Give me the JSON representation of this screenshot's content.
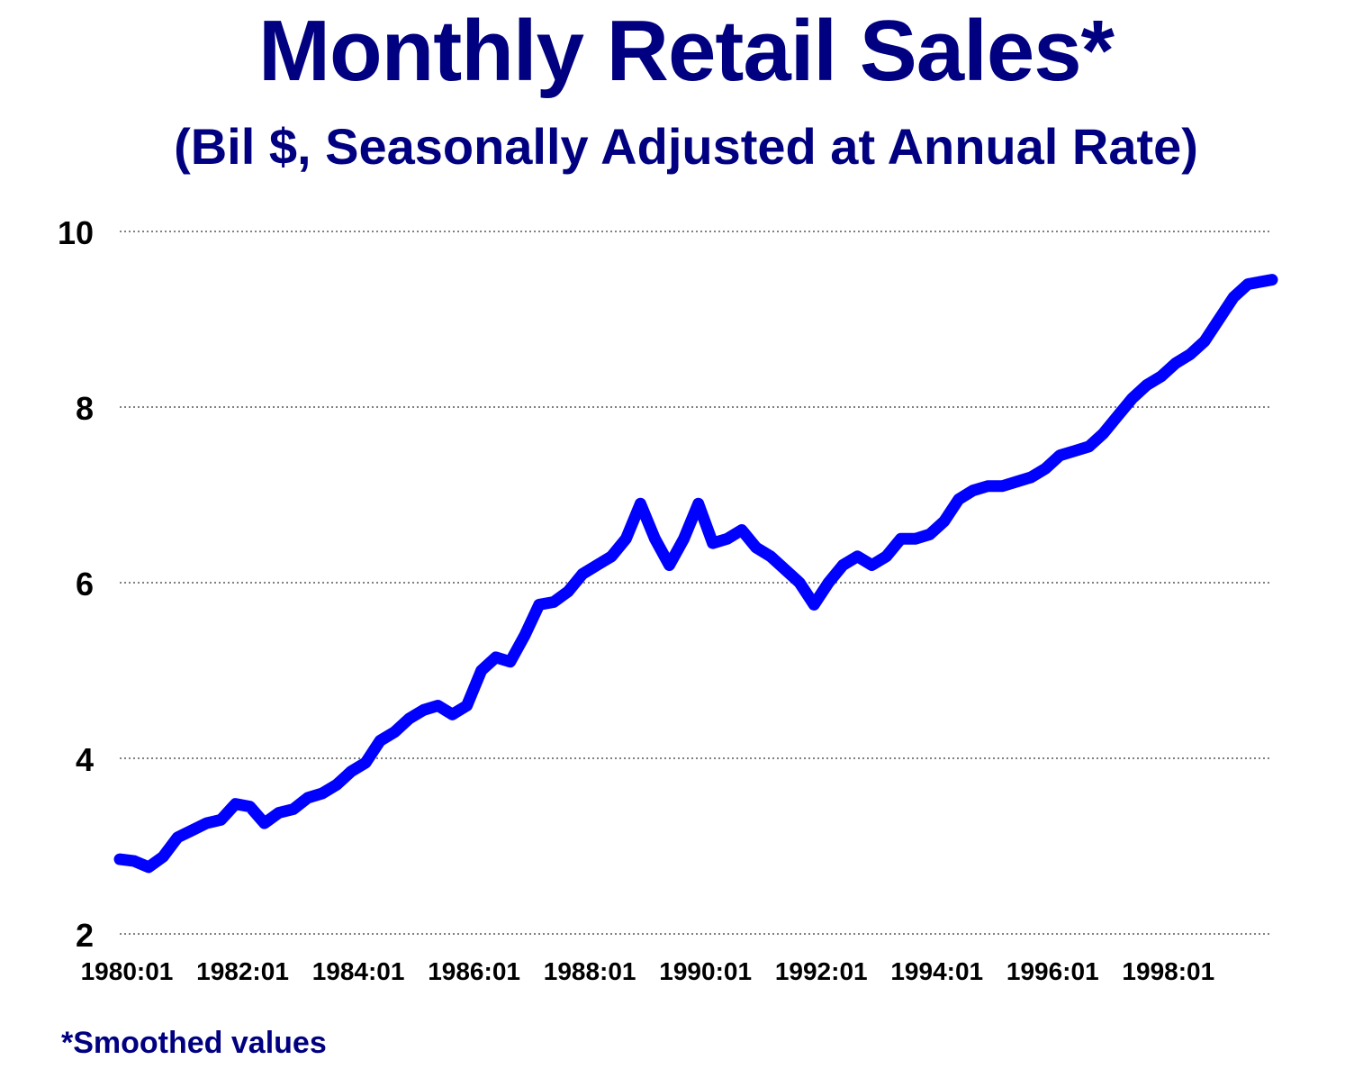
{
  "header": {
    "title": "Monthly Retail Sales*",
    "subtitle": "(Bil $, Seasonally Adjusted at Annual Rate)"
  },
  "footnote": "*Smoothed values",
  "colors": {
    "text": "#000080",
    "line": "#0000ff",
    "grid": "#000000"
  },
  "chart_data": {
    "type": "line",
    "title": "Monthly Retail Sales*",
    "subtitle": "(Bil $, Seasonally Adjusted at Annual Rate)",
    "xlabel": "",
    "ylabel": "",
    "ylim": [
      2,
      10
    ],
    "yticks": [
      2,
      4,
      6,
      8,
      10
    ],
    "xlim": [
      "1980:01",
      "1999:12"
    ],
    "xticks": [
      "1980:01",
      "1982:01",
      "1984:01",
      "1986:01",
      "1988:01",
      "1990:01",
      "1992:01",
      "1994:01",
      "1996:01",
      "1998:01"
    ],
    "grid": "horizontal dotted",
    "legend": "none",
    "series": [
      {
        "x": [
          "1980:01",
          "1980:04",
          "1980:07",
          "1980:10",
          "1981:01",
          "1981:04",
          "1981:07",
          "1981:10",
          "1982:01",
          "1982:04",
          "1982:07",
          "1982:10",
          "1983:01",
          "1983:04",
          "1983:07",
          "1983:10",
          "1984:01",
          "1984:04",
          "1984:07",
          "1984:10",
          "1985:01",
          "1985:04",
          "1985:07",
          "1985:10",
          "1986:01",
          "1986:04",
          "1986:07",
          "1986:10",
          "1987:01",
          "1987:04",
          "1987:07",
          "1987:10",
          "1988:01",
          "1988:04",
          "1988:07",
          "1988:10",
          "1989:01",
          "1989:04",
          "1989:07",
          "1989:10",
          "1990:01",
          "1990:04",
          "1990:07",
          "1990:10",
          "1991:01",
          "1991:04",
          "1991:07",
          "1991:10",
          "1992:01",
          "1992:04",
          "1992:07",
          "1992:10",
          "1993:01",
          "1993:04",
          "1993:07",
          "1993:10",
          "1994:01",
          "1994:04",
          "1994:07",
          "1994:10",
          "1995:01",
          "1995:04",
          "1995:07",
          "1995:10",
          "1996:01",
          "1996:04",
          "1996:07",
          "1996:10",
          "1997:01",
          "1997:04",
          "1997:07",
          "1997:10",
          "1998:01",
          "1998:04",
          "1998:07",
          "1998:10",
          "1999:01",
          "1999:04",
          "1999:07",
          "1999:12"
        ],
        "values": [
          2.85,
          2.83,
          2.76,
          2.88,
          3.1,
          3.18,
          3.26,
          3.3,
          3.48,
          3.45,
          3.26,
          3.38,
          3.42,
          3.55,
          3.6,
          3.7,
          3.85,
          3.95,
          4.2,
          4.3,
          4.45,
          4.55,
          4.6,
          4.5,
          4.6,
          5.0,
          5.15,
          5.1,
          5.4,
          5.75,
          5.78,
          5.9,
          6.1,
          6.2,
          6.3,
          6.5,
          6.9,
          6.5,
          6.2,
          6.5,
          6.9,
          6.45,
          6.5,
          6.6,
          6.4,
          6.3,
          6.15,
          6.0,
          5.75,
          6.0,
          6.2,
          6.3,
          6.2,
          6.3,
          6.5,
          6.5,
          6.55,
          6.7,
          6.95,
          7.05,
          7.1,
          7.1,
          7.15,
          7.2,
          7.3,
          7.45,
          7.5,
          7.55,
          7.7,
          7.9,
          8.1,
          8.25,
          8.35,
          8.5,
          8.6,
          8.75,
          9.0,
          9.25,
          9.4,
          9.45
        ]
      }
    ]
  }
}
